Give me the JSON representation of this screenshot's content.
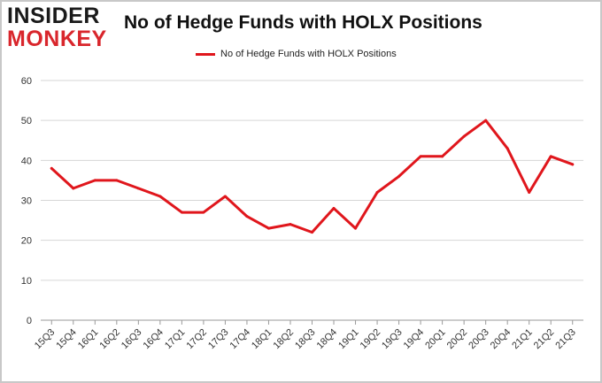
{
  "logo": {
    "line1": "INSIDER",
    "line2": "MONKEY"
  },
  "chart_data": {
    "type": "line",
    "title": "No of Hedge Funds with HOLX Positions",
    "xlabel": "",
    "ylabel": "",
    "ylim": [
      0,
      60
    ],
    "yticks": [
      0,
      10,
      20,
      30,
      40,
      50,
      60
    ],
    "grid": true,
    "legend_position": "top-center",
    "categories": [
      "15Q3",
      "15Q4",
      "16Q1",
      "16Q2",
      "16Q3",
      "16Q4",
      "17Q1",
      "17Q2",
      "17Q3",
      "17Q4",
      "18Q1",
      "18Q2",
      "18Q3",
      "18Q4",
      "19Q1",
      "19Q2",
      "19Q3",
      "19Q4",
      "20Q1",
      "20Q2",
      "20Q3",
      "20Q4",
      "21Q1",
      "21Q2",
      "21Q3"
    ],
    "series": [
      {
        "name": "No of Hedge Funds with HOLX Positions",
        "color": "#e0161c",
        "values": [
          38,
          33,
          35,
          35,
          33,
          31,
          27,
          27,
          31,
          26,
          23,
          24,
          22,
          28,
          23,
          32,
          36,
          41,
          41,
          46,
          50,
          43,
          32,
          41,
          39
        ]
      }
    ]
  }
}
